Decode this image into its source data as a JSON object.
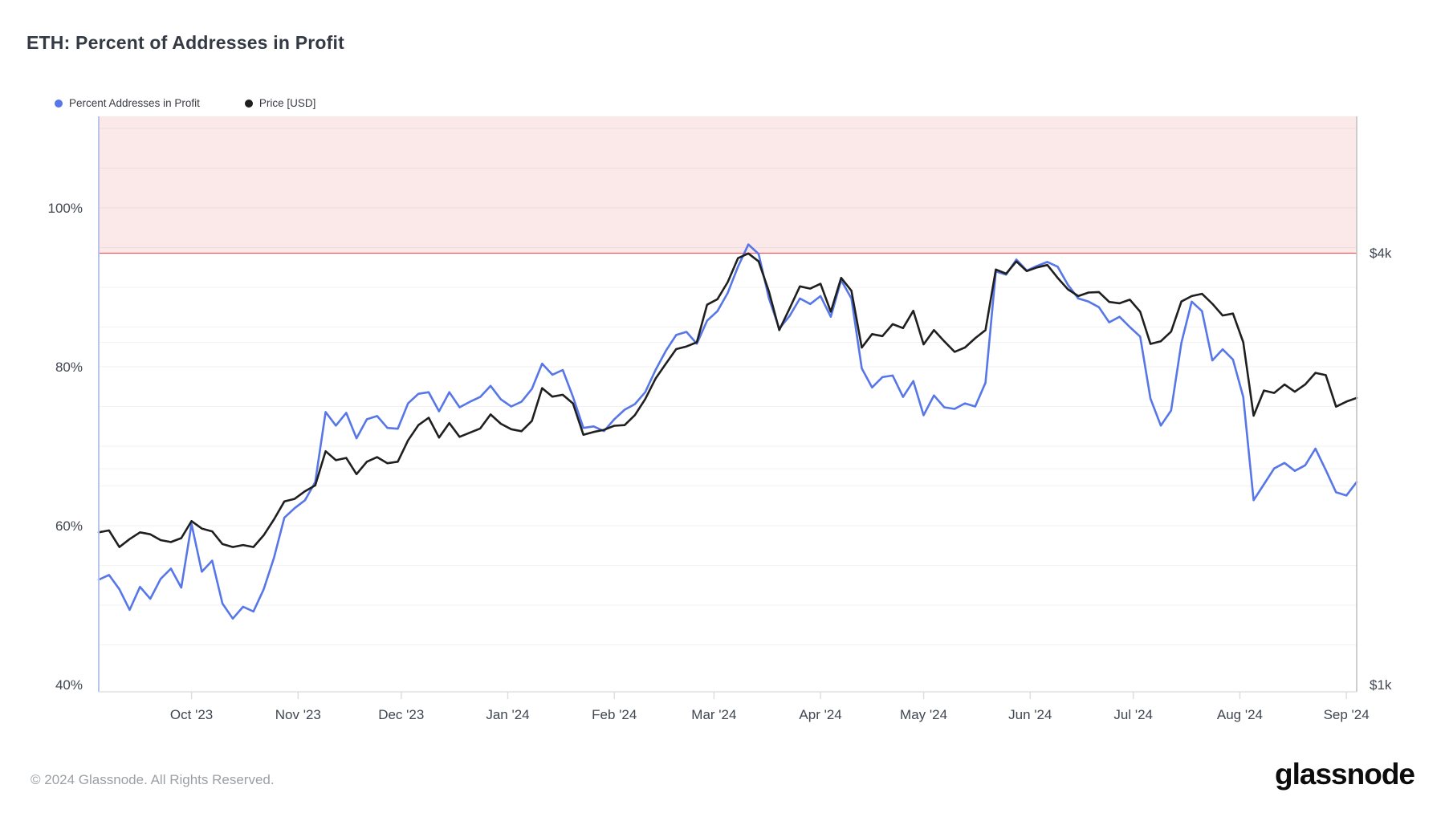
{
  "header": {
    "title": "ETH: Percent of Addresses in Profit"
  },
  "legend": [
    {
      "label": "Percent Addresses in Profit",
      "color": "#5776e7"
    },
    {
      "label": "Price [USD]",
      "color": "#1f1f1f"
    }
  ],
  "footer": {
    "copyright": "© 2024 Glassnode. All Rights Reserved.",
    "brand": "glassnode"
  },
  "chart_data": {
    "type": "line",
    "title": "ETH: Percent of Addresses in Profit",
    "x_day_step": 3,
    "x_day_span": 366,
    "x_ticks": [
      {
        "label": "Oct '23",
        "day": 27
      },
      {
        "label": "Nov '23",
        "day": 58
      },
      {
        "label": "Dec '23",
        "day": 88
      },
      {
        "label": "Jan '24",
        "day": 119
      },
      {
        "label": "Feb '24",
        "day": 150
      },
      {
        "label": "Mar '24",
        "day": 179
      },
      {
        "label": "Apr '24",
        "day": 210
      },
      {
        "label": "May '24",
        "day": 240
      },
      {
        "label": "Jun '24",
        "day": 271
      },
      {
        "label": "Jul '24",
        "day": 301
      },
      {
        "label": "Aug '24",
        "day": 332
      },
      {
        "label": "Sep '24",
        "day": 363
      }
    ],
    "percent_axis": {
      "min": 39.09,
      "max": 111.52,
      "ticks": [
        {
          "label": "100%",
          "value": 100
        },
        {
          "label": "80%",
          "value": 80
        },
        {
          "label": "60%",
          "value": 60
        },
        {
          "label": "40%",
          "value": 40
        }
      ],
      "grid_step": 5,
      "grid_from": 45,
      "grid_to": 110
    },
    "price_axis": {
      "scale": "log2",
      "min": 977,
      "max": 6196,
      "ticks": [
        {
          "label": "$4k",
          "value": 4000
        },
        {
          "label": "$1k",
          "value": 1000
        }
      ],
      "grid_lines": [
        2000,
        3000
      ]
    },
    "threshold": {
      "value": 94.3,
      "line_color": "#e4615e",
      "band_color": "#fbe8e8"
    },
    "colors": {
      "grid": "rgba(0,0,0,0.05)",
      "axis_left": "#b8c4ec",
      "axis_right": "#c2c2c2",
      "axis_bottom": "#e0e0e0",
      "tick_text": "#3f4651"
    },
    "series": [
      {
        "name": "Percent Addresses in Profit",
        "axis": "percent",
        "color": "#5776e7",
        "values": [
          53.2,
          53.8,
          52.0,
          49.4,
          52.3,
          50.8,
          53.3,
          54.6,
          52.2,
          60.2,
          54.2,
          55.6,
          50.2,
          48.3,
          49.8,
          49.2,
          52.0,
          56.0,
          61.0,
          62.2,
          63.2,
          65.5,
          74.3,
          72.6,
          74.2,
          71.0,
          73.4,
          73.8,
          72.3,
          72.2,
          75.4,
          76.6,
          76.8,
          74.4,
          76.8,
          74.9,
          75.6,
          76.2,
          77.6,
          75.9,
          75.0,
          75.6,
          77.2,
          80.4,
          79.0,
          79.6,
          76.2,
          72.3,
          72.5,
          71.9,
          73.4,
          74.6,
          75.3,
          76.8,
          79.6,
          82.0,
          84.0,
          84.4,
          82.9,
          85.8,
          87.0,
          89.3,
          92.6,
          95.4,
          94.2,
          88.6,
          84.8,
          86.4,
          88.6,
          87.9,
          88.9,
          86.3,
          90.9,
          88.6,
          79.8,
          77.4,
          78.7,
          78.9,
          76.2,
          78.2,
          73.9,
          76.4,
          74.9,
          74.7,
          75.4,
          75.0,
          78.0,
          92.0,
          91.6,
          93.5,
          92.1,
          92.7,
          93.2,
          92.6,
          90.3,
          88.6,
          88.2,
          87.5,
          85.6,
          86.3,
          85.0,
          83.8,
          76.0,
          72.6,
          74.5,
          83.0,
          88.2,
          87.0,
          80.8,
          82.2,
          80.9,
          76.2,
          63.2,
          65.2,
          67.2,
          67.9,
          66.9,
          67.6,
          69.7,
          67.0,
          64.2,
          63.8,
          65.5
        ]
      },
      {
        "name": "Price [USD]",
        "axis": "price",
        "color": "#1f1f1f",
        "values": [
          1630,
          1640,
          1555,
          1595,
          1630,
          1620,
          1590,
          1580,
          1600,
          1690,
          1650,
          1635,
          1570,
          1555,
          1565,
          1555,
          1615,
          1700,
          1800,
          1815,
          1860,
          1895,
          2115,
          2055,
          2070,
          1965,
          2045,
          2075,
          2035,
          2045,
          2190,
          2300,
          2355,
          2210,
          2315,
          2215,
          2245,
          2275,
          2380,
          2310,
          2270,
          2255,
          2330,
          2590,
          2520,
          2535,
          2465,
          2230,
          2250,
          2265,
          2295,
          2300,
          2375,
          2500,
          2670,
          2800,
          2935,
          2960,
          3000,
          3385,
          3445,
          3640,
          3930,
          3990,
          3890,
          3530,
          3120,
          3345,
          3590,
          3565,
          3620,
          3310,
          3690,
          3540,
          2950,
          3080,
          3060,
          3180,
          3140,
          3320,
          2980,
          3120,
          3010,
          2910,
          2950,
          3040,
          3120,
          3790,
          3740,
          3890,
          3770,
          3815,
          3845,
          3690,
          3555,
          3480,
          3520,
          3525,
          3415,
          3400,
          3440,
          3310,
          2985,
          3010,
          3105,
          3420,
          3480,
          3505,
          3395,
          3270,
          3290,
          3000,
          2370,
          2570,
          2550,
          2620,
          2560,
          2620,
          2720,
          2700,
          2440,
          2480,
          2510
        ]
      }
    ]
  }
}
